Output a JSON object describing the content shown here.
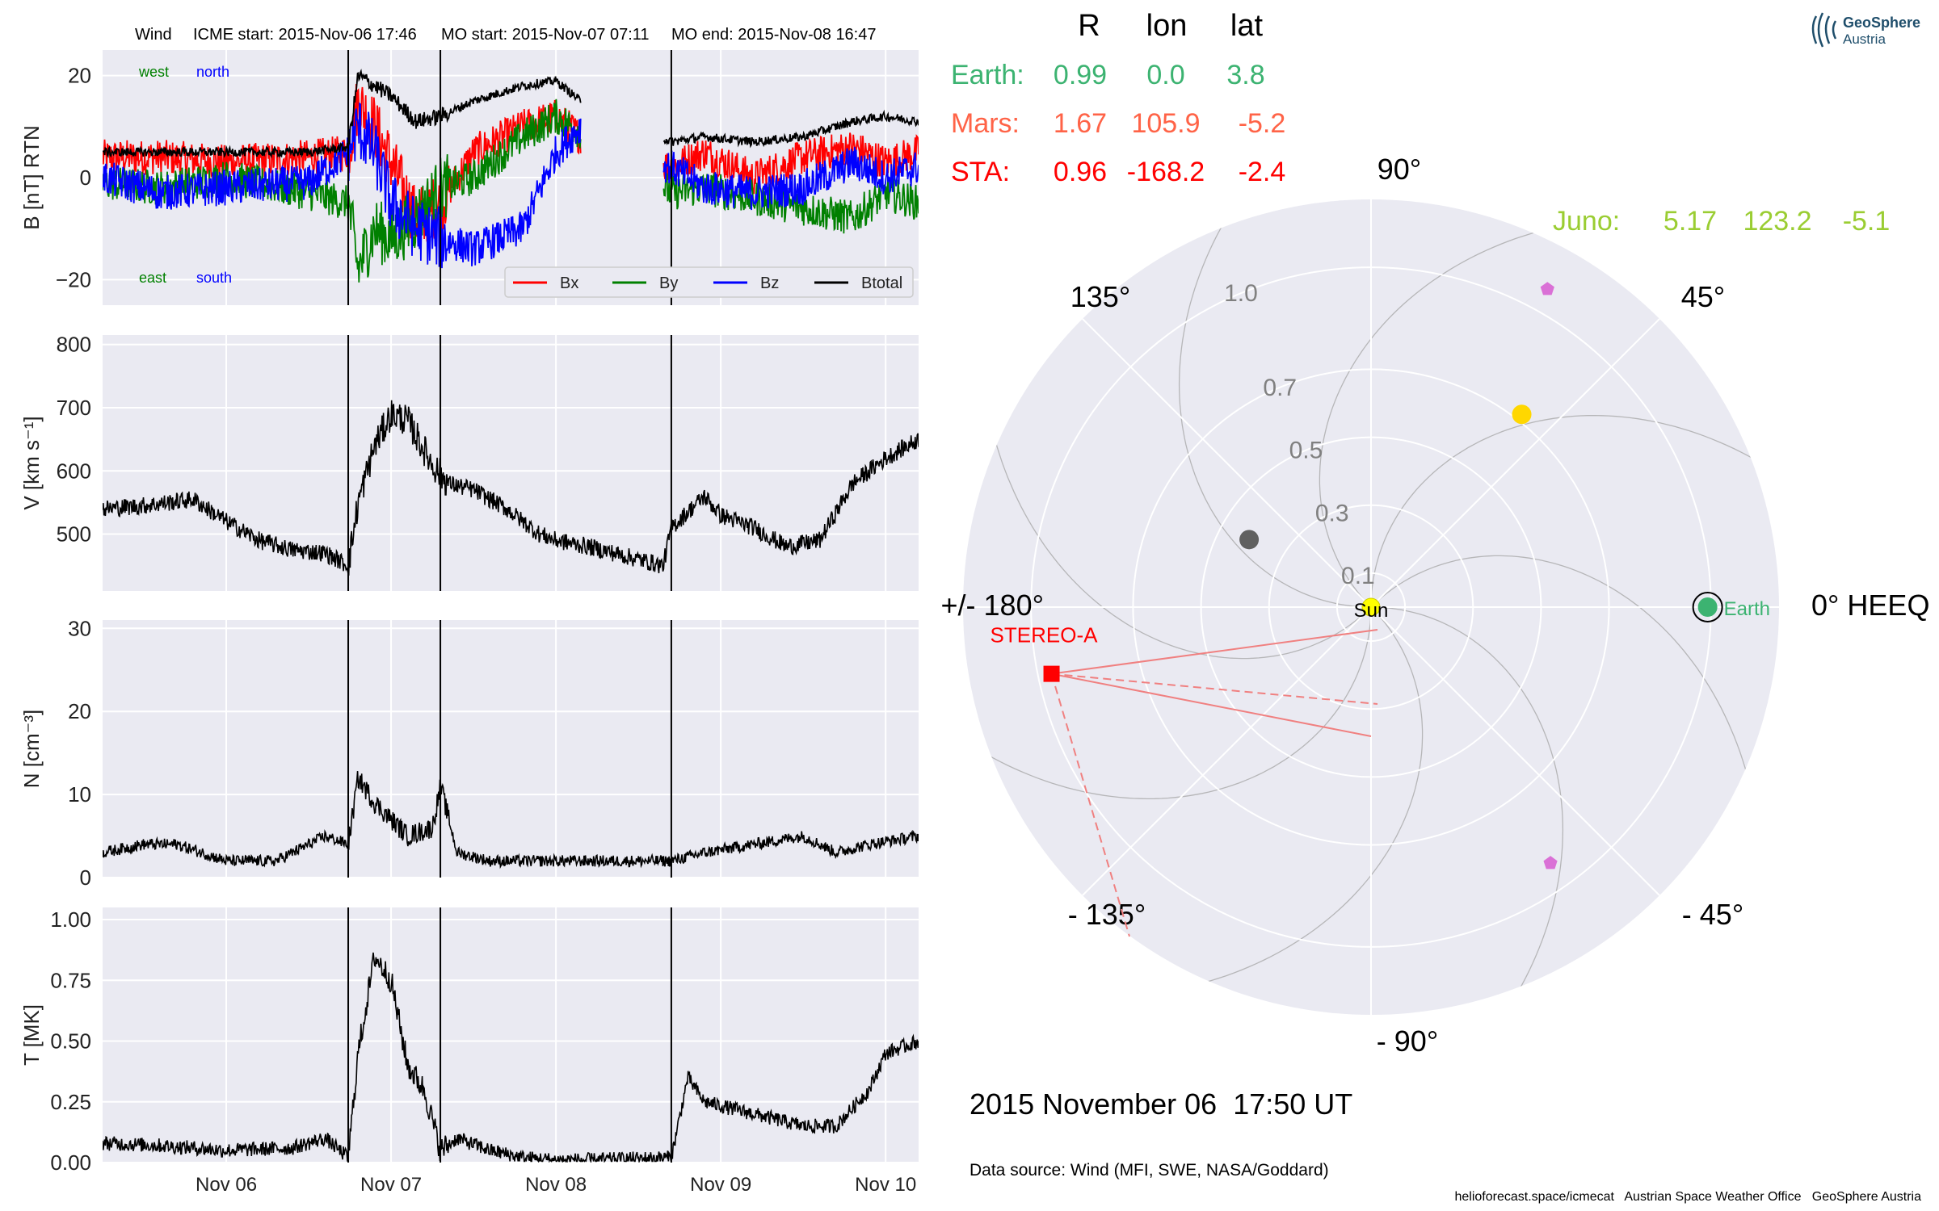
{
  "header": {
    "spacecraft": "Wind",
    "icme_start": "ICME start: 2015-Nov-06 17:46",
    "mo_start": "MO start: 2015-Nov-07 07:11",
    "mo_end": "MO end: 2015-Nov-08 16:47"
  },
  "logo": {
    "line1": "GeoSphere",
    "line2": "Austria"
  },
  "time_axis": {
    "tick_labels": [
      "Nov 06",
      "Nov 07",
      "Nov 08",
      "Nov 09",
      "Nov 10"
    ],
    "range_days": [
      5.25,
      10.2
    ]
  },
  "event_lines_days": [
    6.74,
    7.299,
    8.7
  ],
  "panels": [
    {
      "id": "B",
      "ylabel": "B [nT] RTN",
      "ylim": [
        -25,
        25
      ],
      "ticks": [
        -20,
        0,
        20
      ],
      "tick_labels": [
        "−20",
        "0",
        "20"
      ],
      "annotations": {
        "west": "west",
        "north": "north",
        "east": "east",
        "south": "south"
      },
      "legend": [
        "Bx",
        "By",
        "Bz",
        "Btotal"
      ]
    },
    {
      "id": "V",
      "ylabel": "V [km s⁻¹]",
      "ylim": [
        410,
        815
      ],
      "ticks": [
        500,
        600,
        700,
        800
      ],
      "tick_labels": [
        "500",
        "600",
        "700",
        "800"
      ]
    },
    {
      "id": "N",
      "ylabel": "N [cm⁻³]",
      "ylim": [
        0,
        31
      ],
      "ticks": [
        0,
        10,
        20,
        30
      ],
      "tick_labels": [
        "0",
        "10",
        "20",
        "30"
      ]
    },
    {
      "id": "T",
      "ylabel": "T [MK]",
      "ylim": [
        0,
        1.05
      ],
      "ticks": [
        0,
        0.25,
        0.5,
        0.75,
        1.0
      ],
      "tick_labels": [
        "0.00",
        "0.25",
        "0.50",
        "0.75",
        "1.00"
      ]
    }
  ],
  "chart_data": [
    {
      "type": "line",
      "title": "Wind    ICME start: 2015-Nov-06 17:46   MO start: 2015-Nov-07 07:11   MO end: 2015-Nov-08 16:47",
      "ylabel": "B [nT] RTN",
      "ylim": [
        -25,
        25
      ],
      "series": [
        {
          "name": "Bx",
          "color": "#ff0000",
          "x": [
            5.25,
            5.6,
            6.0,
            6.5,
            6.74,
            6.8,
            6.9,
            7.0,
            7.15,
            7.3,
            7.5,
            7.8,
            8.0,
            8.15,
            8.7,
            8.9,
            9.2,
            9.5,
            9.8,
            10.0,
            10.2
          ],
          "y": [
            4,
            4,
            3,
            4,
            5,
            15,
            10,
            3,
            -8,
            -5,
            5,
            10,
            12,
            8,
            2,
            5,
            0,
            4,
            6,
            3,
            5
          ]
        },
        {
          "name": "By",
          "color": "#008000",
          "x": [
            5.25,
            5.6,
            6.0,
            6.5,
            6.74,
            6.8,
            6.9,
            7.0,
            7.15,
            7.3,
            7.5,
            7.8,
            8.0,
            8.15,
            8.7,
            8.9,
            9.2,
            9.5,
            9.8,
            10.0,
            10.2
          ],
          "y": [
            -1,
            -2,
            0,
            -3,
            -5,
            -18,
            -10,
            -12,
            -8,
            -2,
            0,
            8,
            12,
            9,
            -3,
            -2,
            -4,
            -6,
            -8,
            -3,
            -5
          ]
        },
        {
          "name": "Bz",
          "color": "#0000ff",
          "x": [
            5.25,
            5.6,
            6.0,
            6.5,
            6.74,
            6.8,
            6.9,
            7.0,
            7.15,
            7.3,
            7.5,
            7.8,
            8.0,
            8.15,
            8.7,
            8.9,
            9.2,
            9.5,
            9.8,
            10.0,
            10.2
          ],
          "y": [
            0,
            -3,
            -2,
            -1,
            5,
            10,
            5,
            -5,
            -10,
            -12,
            -14,
            -10,
            5,
            10,
            2,
            -2,
            -3,
            -2,
            3,
            0,
            2
          ]
        },
        {
          "name": "Btotal",
          "color": "#000000",
          "x": [
            5.25,
            5.6,
            6.0,
            6.5,
            6.74,
            6.8,
            6.9,
            7.0,
            7.15,
            7.3,
            7.5,
            7.8,
            8.0,
            8.15,
            8.7,
            8.9,
            9.2,
            9.5,
            9.8,
            10.0,
            10.2
          ],
          "y": [
            5,
            5,
            5,
            5,
            6,
            20,
            18,
            16,
            11,
            12,
            15,
            18,
            19,
            15,
            7,
            8,
            7,
            8,
            11,
            12,
            11
          ]
        }
      ],
      "gaps_days": [
        [
          8.15,
          8.65
        ]
      ]
    },
    {
      "type": "line",
      "ylabel": "V [km s⁻¹]",
      "ylim": [
        410,
        815
      ],
      "series": [
        {
          "name": "V",
          "color": "#000000",
          "x": [
            5.25,
            5.5,
            5.8,
            6.0,
            6.2,
            6.4,
            6.6,
            6.74,
            6.8,
            6.9,
            7.0,
            7.1,
            7.25,
            7.35,
            7.5,
            7.7,
            7.9,
            8.0,
            8.2,
            8.65,
            8.7,
            8.9,
            9.0,
            9.2,
            9.4,
            9.6,
            9.8,
            10.0,
            10.2
          ],
          "y": [
            540,
            545,
            555,
            520,
            490,
            475,
            470,
            450,
            550,
            640,
            690,
            680,
            610,
            580,
            570,
            540,
            500,
            490,
            480,
            450,
            510,
            560,
            530,
            510,
            480,
            490,
            580,
            620,
            650
          ]
        }
      ]
    },
    {
      "type": "line",
      "ylabel": "N [cm⁻³]",
      "ylim": [
        0,
        31
      ],
      "series": [
        {
          "name": "N",
          "color": "#000000",
          "x": [
            5.25,
            5.5,
            5.7,
            6.0,
            6.3,
            6.6,
            6.74,
            6.8,
            6.9,
            7.0,
            7.1,
            7.25,
            7.3,
            7.4,
            7.6,
            7.8,
            8.0,
            8.2,
            8.7,
            8.9,
            9.2,
            9.5,
            9.7,
            9.9,
            10.2
          ],
          "y": [
            3,
            4,
            4,
            2,
            2,
            5,
            4,
            12,
            9,
            7,
            5,
            6,
            11,
            3,
            2,
            2,
            2,
            2,
            2,
            3,
            4,
            5,
            3,
            4,
            5
          ]
        }
      ]
    },
    {
      "type": "line",
      "ylabel": "T [MK]",
      "ylim": [
        0,
        1.05
      ],
      "series": [
        {
          "name": "T",
          "color": "#000000",
          "x": [
            5.25,
            5.6,
            6.0,
            6.4,
            6.6,
            6.74,
            6.8,
            6.9,
            7.0,
            7.1,
            7.2,
            7.3,
            7.4,
            7.6,
            7.8,
            8.0,
            8.2,
            8.7,
            8.8,
            8.9,
            9.2,
            9.5,
            9.7,
            9.9,
            10.0,
            10.2
          ],
          "y": [
            0.08,
            0.07,
            0.05,
            0.06,
            0.1,
            0.02,
            0.45,
            0.85,
            0.75,
            0.4,
            0.3,
            0.05,
            0.1,
            0.05,
            0.02,
            0.01,
            0.01,
            0.02,
            0.35,
            0.25,
            0.2,
            0.15,
            0.15,
            0.3,
            0.45,
            0.5
          ]
        }
      ]
    },
    {
      "type": "scatter",
      "title": "Polar HEEQ position plot",
      "coordinate_system": "HEEQ",
      "r_ticks": [
        0.1,
        0.3,
        0.5,
        0.7,
        1.0
      ],
      "r_tick_labels": [
        "0.1",
        "0.3",
        "0.5",
        "0.7",
        "1.0"
      ],
      "rmax": 1.2,
      "angle_labels": {
        "90": "90°",
        "45": "45°",
        "0": "0° HEEQ",
        "-45": "- 45°",
        "-90": "- 90°",
        "-135": "- 135°",
        "135": "135°",
        "180": "+/- 180°"
      },
      "points": [
        {
          "name": "Sun",
          "r": 0.0,
          "lon": 0,
          "color": "#ffff00",
          "label": "Sun"
        },
        {
          "name": "Earth",
          "r": 0.99,
          "lon": 0.0,
          "color": "#3cb371",
          "label": "Earth"
        },
        {
          "name": "STEREO-A",
          "r": 0.96,
          "lon": -168.2,
          "color": "#ff0000",
          "label": "STEREO-A"
        },
        {
          "name": "Mercury",
          "r": 0.41,
          "lon": 151,
          "color": "#606060"
        },
        {
          "name": "Venus",
          "r": 0.72,
          "lon": 52,
          "color": "#ffd700"
        },
        {
          "name": "Pentagon-1",
          "r": 1.07,
          "lon": 61,
          "color": "#da70d6"
        },
        {
          "name": "Pentagon-2",
          "r": 0.92,
          "lon": -55,
          "color": "#da70d6"
        }
      ]
    }
  ],
  "position_table": {
    "headers": [
      "R",
      "lon",
      "lat"
    ],
    "rows": [
      {
        "name": "Earth:",
        "R": "0.99",
        "lon": "0.0",
        "lat": "3.8",
        "color": "#3cb371"
      },
      {
        "name": "Mars:",
        "R": "1.67",
        "lon": "105.9",
        "lat": "-5.2",
        "color": "#ff6347"
      },
      {
        "name": "STA:",
        "R": "0.96",
        "lon": "-168.2",
        "lat": "-2.4",
        "color": "#ff0000"
      }
    ],
    "juno": {
      "name": "Juno:",
      "R": "5.17",
      "lon": "123.2",
      "lat": "-5.1",
      "color": "#9acd32"
    }
  },
  "polar_labels": {
    "sun": "Sun",
    "earth": "Earth",
    "stereo_a": "STEREO-A"
  },
  "date_label": "2015 November 06  17:50 UT",
  "data_source": "Data source: Wind (MFI, SWE, NASA/Goddard)",
  "footer": "helioforecast.space/icmecat   Austrian Space Weather Office   GeoSphere Austria"
}
